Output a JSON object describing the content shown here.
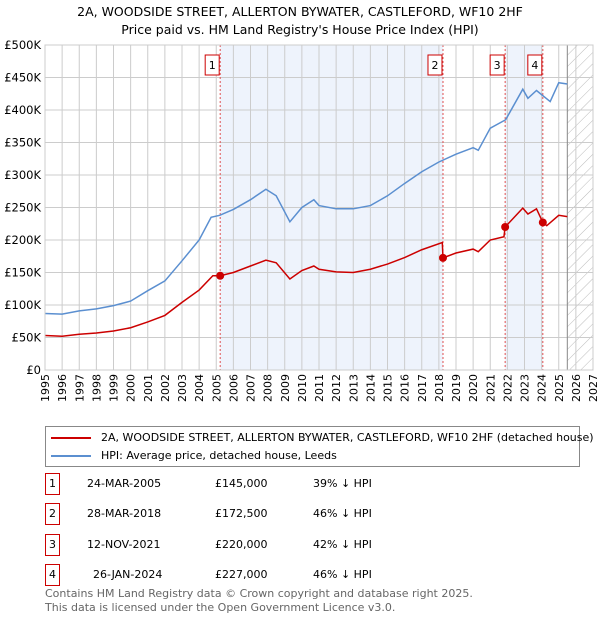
{
  "title": "2A, WOODSIDE STREET, ALLERTON BYWATER, CASTLEFORD, WF10 2HF",
  "subtitle": "Price paid vs. HM Land Registry's House Price Index (HPI)",
  "chart_data": {
    "type": "line",
    "xlim": [
      1995,
      2027
    ],
    "ylim": [
      0,
      500000
    ],
    "x_ticks": [
      "1995",
      "1996",
      "1997",
      "1998",
      "1999",
      "2000",
      "2001",
      "2002",
      "2003",
      "2004",
      "2005",
      "2006",
      "2007",
      "2008",
      "2009",
      "2010",
      "2011",
      "2012",
      "2013",
      "2014",
      "2015",
      "2016",
      "2017",
      "2018",
      "2019",
      "2020",
      "2021",
      "2022",
      "2023",
      "2024",
      "2025",
      "2026",
      "2027"
    ],
    "y_ticks": [
      {
        "v": 0,
        "label": "£0"
      },
      {
        "v": 50000,
        "label": "£50K"
      },
      {
        "v": 100000,
        "label": "£100K"
      },
      {
        "v": 150000,
        "label": "£150K"
      },
      {
        "v": 200000,
        "label": "£200K"
      },
      {
        "v": 250000,
        "label": "£250K"
      },
      {
        "v": 300000,
        "label": "£300K"
      },
      {
        "v": 350000,
        "label": "£350K"
      },
      {
        "v": 400000,
        "label": "£400K"
      },
      {
        "v": 450000,
        "label": "£450K"
      },
      {
        "v": 500000,
        "label": "£500K"
      }
    ],
    "shaded_ranges": [
      [
        2005.23,
        2018.24
      ],
      [
        2021.87,
        2024.07
      ]
    ],
    "forecast_from": 2025.5,
    "series": [
      {
        "name": "2A, WOODSIDE STREET, ALLERTON BYWATER, CASTLEFORD, WF10 2HF (detached house)",
        "color": "#cc0000",
        "x": [
          1995,
          1996,
          1997,
          1998,
          1999,
          2000,
          2001,
          2002,
          2003,
          2004,
          2004.8,
          2005.23,
          2006,
          2007,
          2007.9,
          2008.5,
          2009.3,
          2010,
          2010.7,
          2011,
          2012,
          2013,
          2014,
          2015,
          2016,
          2017,
          2018.2,
          2018.24,
          2019,
          2020,
          2020.3,
          2021,
          2021.8,
          2021.87,
          2022.9,
          2023.2,
          2023.7,
          2024.07,
          2024.3,
          2025,
          2025.5
        ],
        "y": [
          53000,
          52000,
          55000,
          57000,
          60000,
          65000,
          74000,
          84000,
          104000,
          123000,
          145000,
          145000,
          150000,
          160000,
          169000,
          165000,
          140000,
          153000,
          160000,
          155000,
          151000,
          150000,
          155000,
          163000,
          173000,
          185000,
          196000,
          172500,
          180000,
          186000,
          182000,
          200000,
          205000,
          220000,
          249000,
          240000,
          248000,
          227000,
          222000,
          238000,
          236000
        ]
      },
      {
        "name": "HPI: Average price, detached house, Leeds",
        "color": "#5b8fd0",
        "x": [
          1995,
          1996,
          1997,
          1998,
          1999,
          2000,
          2001,
          2002,
          2003,
          2004,
          2004.7,
          2005.2,
          2006,
          2007,
          2007.9,
          2008.5,
          2009.3,
          2010,
          2010.7,
          2011,
          2012,
          2013,
          2014,
          2015,
          2016,
          2017,
          2018,
          2019,
          2020,
          2020.3,
          2021,
          2021.9,
          2022.9,
          2023.2,
          2023.7,
          2024.5,
          2025,
          2025.5
        ],
        "y": [
          87000,
          86000,
          91000,
          94000,
          99000,
          106000,
          122000,
          137000,
          168000,
          200000,
          235000,
          238000,
          247000,
          262000,
          278000,
          268000,
          228000,
          250000,
          262000,
          253000,
          248000,
          248000,
          253000,
          268000,
          287000,
          305000,
          320000,
          332000,
          342000,
          338000,
          372000,
          385000,
          432000,
          418000,
          430000,
          413000,
          442000,
          440000
        ]
      }
    ],
    "sales": [
      {
        "n": "1",
        "x": 2005.23,
        "y": 145000,
        "date": "24-MAR-2005",
        "price": "£145,000",
        "hpi": "39% ↓ HPI"
      },
      {
        "n": "2",
        "x": 2018.24,
        "y": 172500,
        "date": "28-MAR-2018",
        "price": "£172,500",
        "hpi": "46% ↓ HPI"
      },
      {
        "n": "3",
        "x": 2021.87,
        "y": 220000,
        "date": "12-NOV-2021",
        "price": "£220,000",
        "hpi": "42% ↓ HPI"
      },
      {
        "n": "4",
        "x": 2024.07,
        "y": 227000,
        "date": "26-JAN-2024",
        "price": "£227,000",
        "hpi": "46% ↓ HPI"
      }
    ]
  },
  "footer": [
    "Contains HM Land Registry data © Crown copyright and database right 2025.",
    "This data is licensed under the Open Government Licence v3.0."
  ]
}
